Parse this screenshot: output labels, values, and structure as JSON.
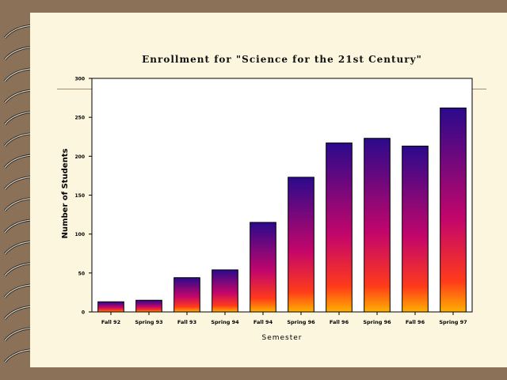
{
  "slide": {
    "background_color": "#8a7157",
    "page_color": "#fbf6dd"
  },
  "chart_data": {
    "type": "bar",
    "title": "Enrollment for \"Science for the 21st Century\"",
    "xlabel": "Semester",
    "ylabel": "Number of Students",
    "ylim": [
      0,
      300
    ],
    "yticks": [
      0,
      50,
      100,
      150,
      200,
      250,
      300
    ],
    "ytick_labels": [
      "0",
      "50",
      "100",
      "150",
      "200",
      "250",
      "300"
    ],
    "categories": [
      "Fall 92",
      "Spring 93",
      "Fall 93",
      "Spring 94",
      "Fall 94",
      "Spring 96",
      "Fall 96",
      "Spring 96",
      "Fall 96",
      "Spring 97"
    ],
    "values": [
      13,
      15,
      44,
      54,
      115,
      173,
      217,
      223,
      213,
      262
    ],
    "grid": false,
    "legend": "none",
    "bar_gradient": [
      "#2a0a8c",
      "#c4066a",
      "#ff3b1a",
      "#ffb000"
    ]
  }
}
